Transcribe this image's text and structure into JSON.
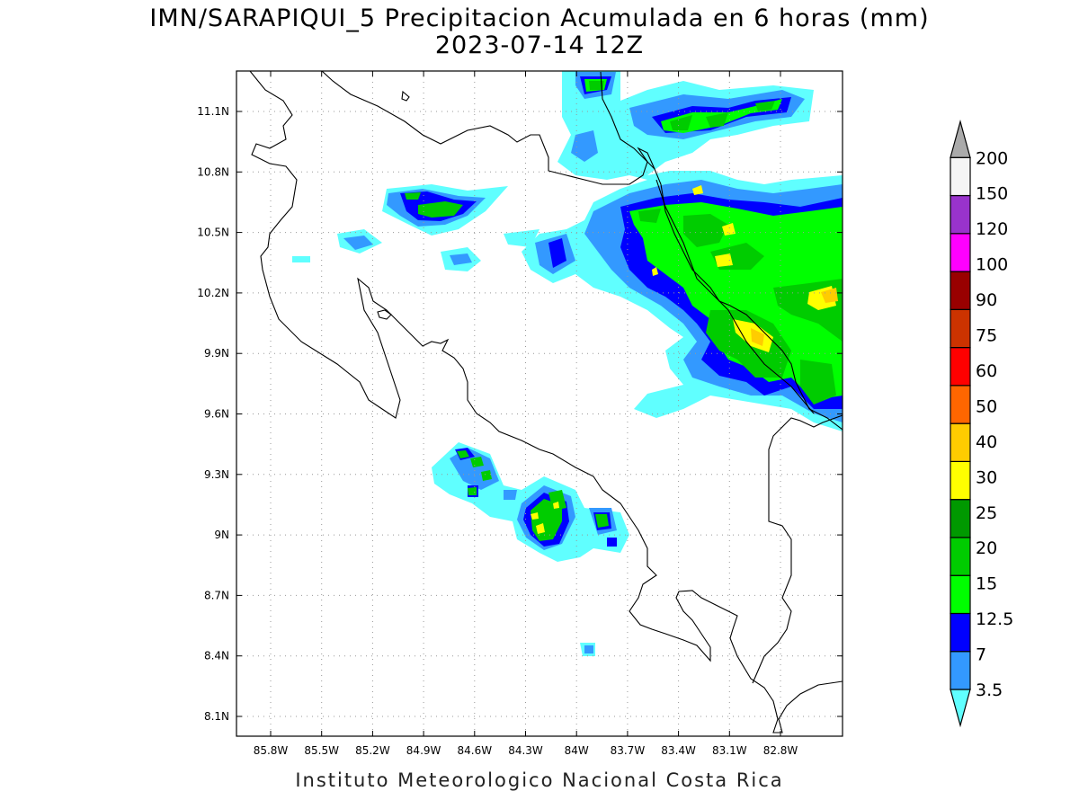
{
  "title": "IMN/SARAPIQUI_5 Precipitacion Acumulada en 6 horas (mm)",
  "subtitle": "2023-07-14 12Z",
  "footer": "Instituto Meteorologico Nacional Costa Rica",
  "map": {
    "lat_ticks": [
      "11.1N",
      "10.8N",
      "10.5N",
      "10.2N",
      "9.9N",
      "9.6N",
      "9.3N",
      "9N",
      "8.7N",
      "8.4N",
      "8.1N"
    ],
    "lon_ticks": [
      "85.8W",
      "85.5W",
      "85.2W",
      "84.9W",
      "84.6W",
      "84.3W",
      "84W",
      "83.7W",
      "83.4W",
      "83.1W",
      "82.8W"
    ],
    "grid": "dotted"
  },
  "colorbar": {
    "labels": [
      "3.5",
      "7",
      "12.5",
      "15",
      "20",
      "25",
      "30",
      "40",
      "50",
      "60",
      "75",
      "90",
      "100",
      "120",
      "150",
      "200"
    ],
    "colors": [
      "#60ffff",
      "#3399ff",
      "#0000ff",
      "#00ff00",
      "#00cc00",
      "#009900",
      "#ffff00",
      "#ffcc00",
      "#ff6600",
      "#ff0000",
      "#cc3300",
      "#990000",
      "#ff00ff",
      "#9933cc",
      "#f5f5f5",
      "#aaaaaa"
    ]
  }
}
